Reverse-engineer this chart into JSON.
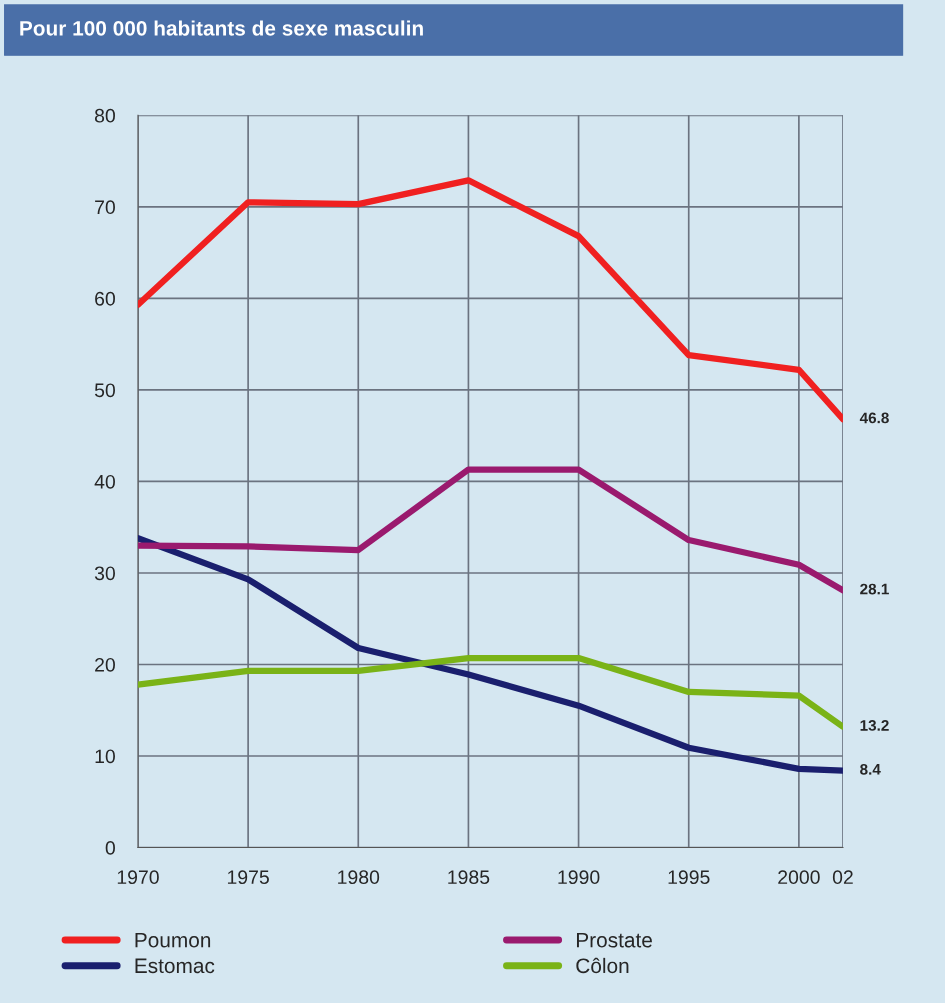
{
  "chart_data": {
    "type": "line",
    "title": "Pour 100 000 habitants de sexe masculin",
    "x": [
      1970,
      1975,
      1980,
      1985,
      1990,
      1995,
      2000,
      2002
    ],
    "series": [
      {
        "name": "Poumon",
        "color": "#f02020",
        "values": [
          59.3,
          70.5,
          70.3,
          72.9,
          66.8,
          53.8,
          52.2,
          46.8
        ],
        "value_labels": [
          null,
          null,
          null,
          null,
          null,
          null,
          null,
          "46.8"
        ]
      },
      {
        "name": "Estomac",
        "color": "#1a1f6e",
        "values": [
          33.8,
          29.3,
          21.8,
          18.9,
          15.5,
          10.9,
          8.6,
          8.4
        ],
        "value_labels": [
          null,
          null,
          null,
          null,
          null,
          null,
          null,
          "8.4"
        ]
      },
      {
        "name": "Prostate",
        "color": "#9a1a6e",
        "values": [
          33.0,
          32.9,
          32.5,
          41.3,
          41.3,
          33.6,
          30.9,
          28.1
        ],
        "value_labels": [
          null,
          null,
          null,
          null,
          null,
          null,
          null,
          "28.1"
        ]
      },
      {
        "name": "Côlon",
        "color": "#7ab317",
        "values": [
          17.8,
          19.3,
          19.3,
          20.7,
          20.7,
          17.0,
          16.6,
          13.2
        ],
        "value_labels": [
          null,
          null,
          null,
          null,
          null,
          null,
          null,
          "13.2"
        ]
      }
    ],
    "xlim": [
      1970,
      2002
    ],
    "ylim": [
      0,
      80
    ],
    "xticks": [
      1970,
      1975,
      1980,
      1985,
      1990,
      1995,
      2000,
      {
        "value": 2002,
        "label": "02"
      }
    ],
    "yticks": [
      0,
      10,
      20,
      30,
      40,
      50,
      60,
      70,
      80
    ],
    "grid": true,
    "legend": "bottom",
    "marker": "none",
    "line_style": "solid"
  }
}
